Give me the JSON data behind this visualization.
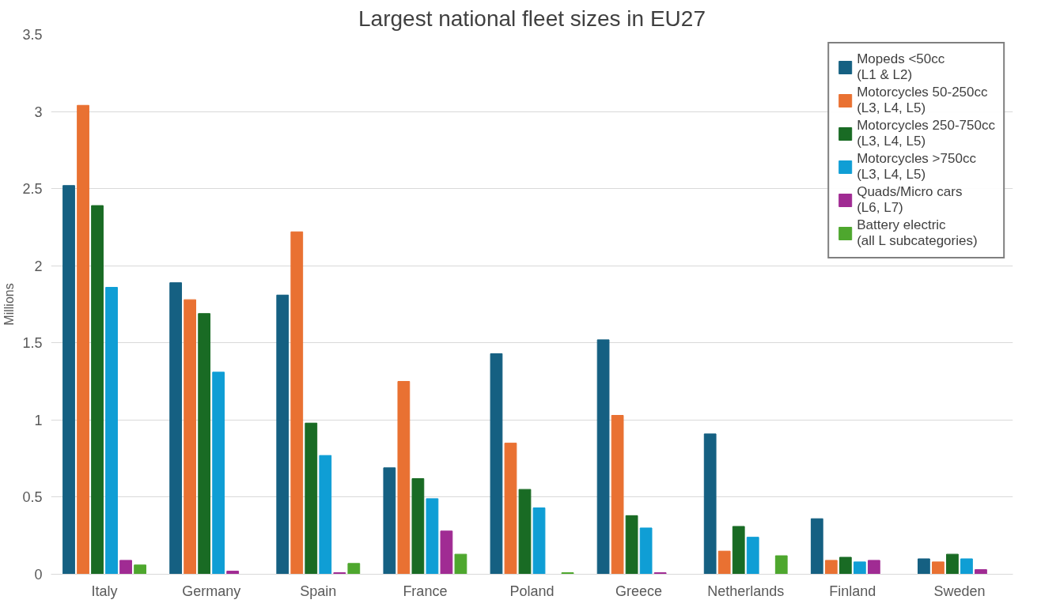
{
  "chart_data": {
    "type": "bar",
    "title": "Largest national fleet sizes in EU27",
    "ylabel": "Millions",
    "categories": [
      "Italy",
      "Germany",
      "Spain",
      "France",
      "Poland",
      "Greece",
      "Netherlands",
      "Finland",
      "Sweden"
    ],
    "series": [
      {
        "name": "Mopeds <50cc\n(L1 & L2)",
        "color": "#156082",
        "values": [
          2.52,
          1.89,
          1.81,
          0.69,
          1.43,
          1.52,
          0.91,
          0.36,
          0.1
        ]
      },
      {
        "name": "Motorcycles 50-250cc\n(L3, L4, L5)",
        "color": "#e97132",
        "values": [
          3.04,
          1.78,
          2.22,
          1.25,
          0.85,
          1.03,
          0.15,
          0.09,
          0.08
        ]
      },
      {
        "name": "Motorcycles 250-750cc\n(L3, L4, L5)",
        "color": "#196b24",
        "values": [
          2.39,
          1.69,
          0.98,
          0.62,
          0.55,
          0.38,
          0.31,
          0.11,
          0.13
        ]
      },
      {
        "name": "Motorcycles >750cc\n(L3, L4, L5)",
        "color": "#0f9ed5",
        "values": [
          1.86,
          1.31,
          0.77,
          0.49,
          0.43,
          0.3,
          0.24,
          0.08,
          0.1
        ]
      },
      {
        "name": "Quads/Micro cars\n(L6, L7)",
        "color": "#a02b93",
        "values": [
          0.09,
          0.02,
          0.01,
          0.28,
          0,
          0.01,
          0,
          0.09,
          0.03
        ]
      },
      {
        "name": "Battery electric\n(all L subcategories)",
        "color": "#4ea72e",
        "values": [
          0.06,
          0,
          0.07,
          0.13,
          0.01,
          0,
          0.12,
          0,
          0
        ]
      }
    ],
    "ylim": [
      0,
      3.5
    ],
    "yticks": [
      0,
      0.5,
      1,
      1.5,
      2,
      2.5,
      3,
      3.5
    ],
    "grid": "y",
    "legend": "top right"
  }
}
